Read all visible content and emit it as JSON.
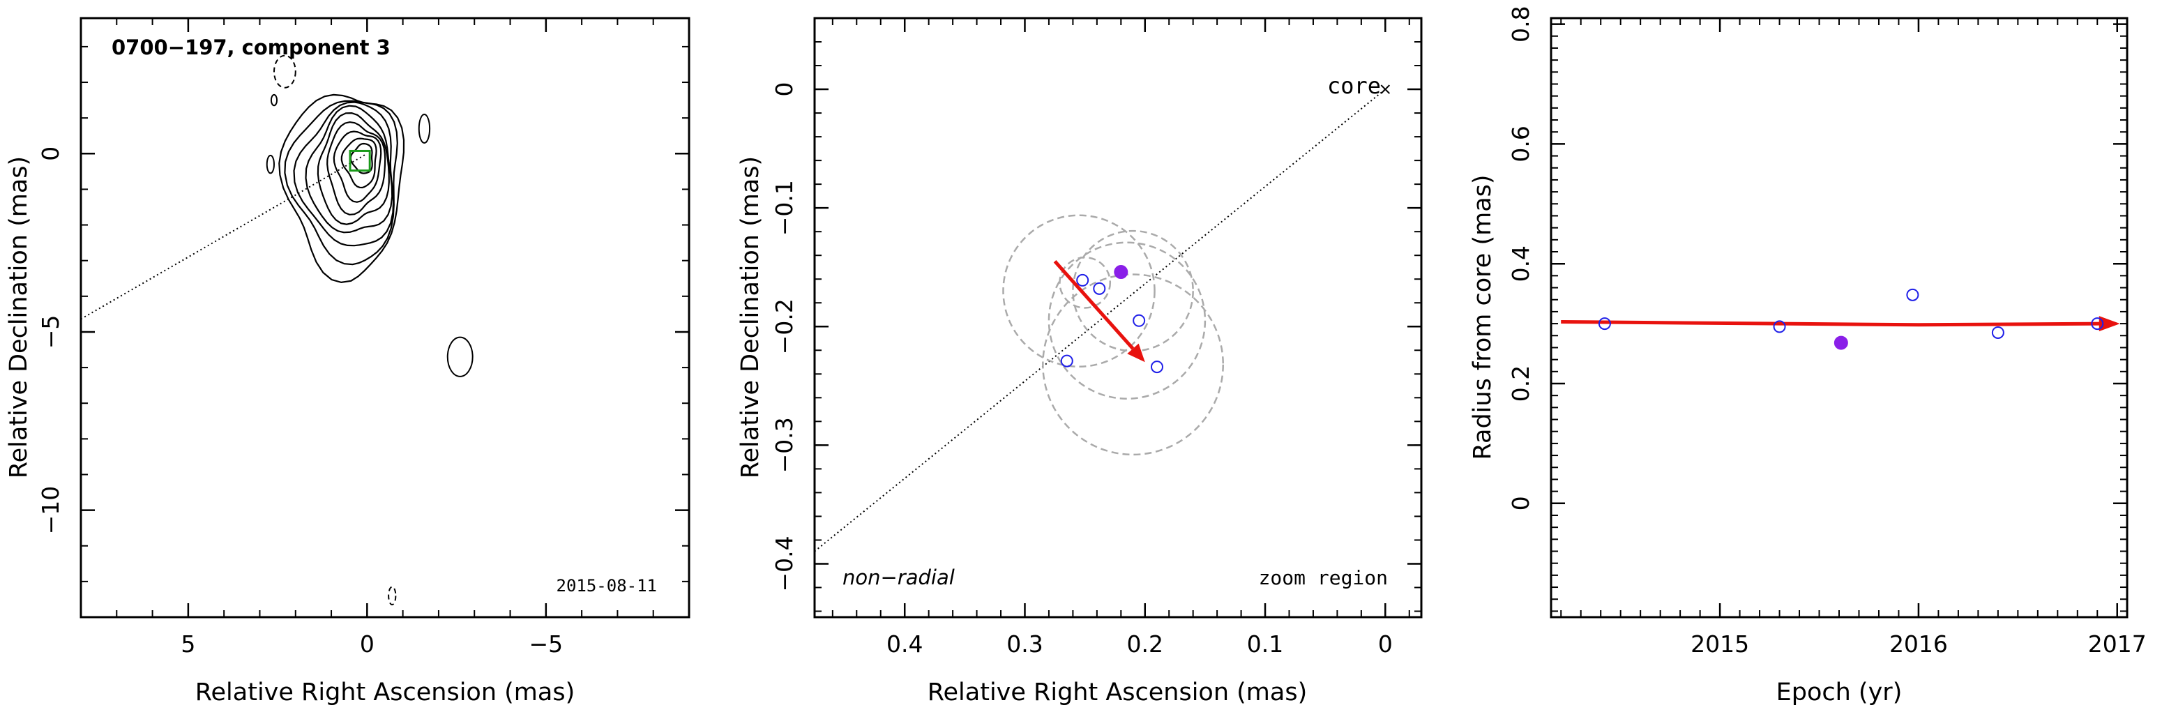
{
  "chart_data": [
    {
      "type": "contour",
      "panel": "left",
      "title": "0700−197, component 3",
      "date": "2015-08-11",
      "xlabel": "Relative Right Ascension (mas)",
      "ylabel": "Relative Declination (mas)",
      "xlim": [
        8.0,
        -9.0
      ],
      "ylim": [
        -13.0,
        3.8
      ],
      "x_ticks": [
        "5",
        "0",
        "−5"
      ],
      "y_ticks": [
        "0",
        "−5",
        "−10"
      ],
      "component_box": {
        "x": 0.2,
        "y": -0.2,
        "size": 0.55,
        "color": "#1a9a1a"
      },
      "core_line": {
        "slope": 0.58
      },
      "contours": {
        "main": {
          "cx": 0.45,
          "cy": -0.6,
          "levels": 9
        },
        "negative": [
          {
            "x": 2.3,
            "y": 2.3,
            "rx": 0.3,
            "ry": 0.45
          },
          {
            "x": -0.7,
            "y": -12.4,
            "rx": 0.1,
            "ry": 0.25
          }
        ],
        "islands": [
          {
            "x": 2.7,
            "y": -0.3,
            "rx": 0.1,
            "ry": 0.25
          },
          {
            "x": 2.6,
            "y": 1.5,
            "rx": 0.08,
            "ry": 0.15
          },
          {
            "x": -1.6,
            "y": 0.7,
            "rx": 0.15,
            "ry": 0.4
          },
          {
            "x": -2.6,
            "y": -5.7,
            "rx": 0.35,
            "ry": 0.55
          }
        ]
      }
    },
    {
      "type": "scatter",
      "panel": "middle",
      "xlabel": "Relative Right Ascension (mas)",
      "ylabel": "Relative Declination (mas)",
      "xlim": [
        0.475,
        -0.03
      ],
      "ylim": [
        -0.445,
        0.06
      ],
      "x_ticks": [
        "0.4",
        "0.3",
        "0.2",
        "0.1",
        "0"
      ],
      "y_ticks": [
        "0",
        "−0.1",
        "−0.2",
        "−0.3",
        "−0.4"
      ],
      "core_label": "core",
      "corner_left": "non−radial",
      "corner_right": "zoom region",
      "core_line": {
        "slope": 0.82
      },
      "points": [
        {
          "x": 0.265,
          "y": -0.229,
          "filled": false
        },
        {
          "x": 0.252,
          "y": -0.161,
          "filled": false
        },
        {
          "x": 0.238,
          "y": -0.168,
          "filled": false
        },
        {
          "x": 0.22,
          "y": -0.154,
          "filled": true
        },
        {
          "x": 0.205,
          "y": -0.195,
          "filled": false
        },
        {
          "x": 0.19,
          "y": -0.234,
          "filled": false
        }
      ],
      "circles": [
        {
          "x": 0.255,
          "y": -0.17,
          "r": 0.063
        },
        {
          "x": 0.25,
          "y": -0.163,
          "r": 0.021
        },
        {
          "x": 0.215,
          "y": -0.195,
          "r": 0.065
        },
        {
          "x": 0.21,
          "y": -0.232,
          "r": 0.075
        },
        {
          "x": 0.21,
          "y": -0.17,
          "r": 0.05
        }
      ],
      "arrow": {
        "from": [
          0.275,
          -0.145
        ],
        "to": [
          0.2,
          -0.23
        ],
        "color": "#e8120e"
      },
      "colors": {
        "open": "#1f1fe8",
        "filled": "#8a1fe8",
        "circle": "#aaaaaa"
      }
    },
    {
      "type": "scatter",
      "panel": "right",
      "xlabel": "Epoch (yr)",
      "ylabel": "Radius from core (mas)",
      "xlim": [
        2014.15,
        2017.05
      ],
      "ylim": [
        -0.19,
        0.81
      ],
      "x_ticks": [
        "2015",
        "2016",
        "2017"
      ],
      "y_ticks": [
        "0",
        "0.2",
        "0.4",
        "0.6",
        "0.8"
      ],
      "points": [
        {
          "x": 2014.42,
          "y": 0.3,
          "filled": false
        },
        {
          "x": 2015.3,
          "y": 0.295,
          "filled": false
        },
        {
          "x": 2015.61,
          "y": 0.268,
          "filled": true
        },
        {
          "x": 2015.97,
          "y": 0.348,
          "filled": false
        },
        {
          "x": 2016.4,
          "y": 0.285,
          "filled": false
        },
        {
          "x": 2016.9,
          "y": 0.3,
          "filled": false
        }
      ],
      "fit_curve": [
        [
          2014.2,
          0.303
        ],
        [
          2016.0,
          0.298
        ],
        [
          2017.0,
          0.3
        ]
      ],
      "colors": {
        "open": "#1f1fe8",
        "filled": "#8a1fe8",
        "arrow": "#e8120e"
      }
    }
  ]
}
